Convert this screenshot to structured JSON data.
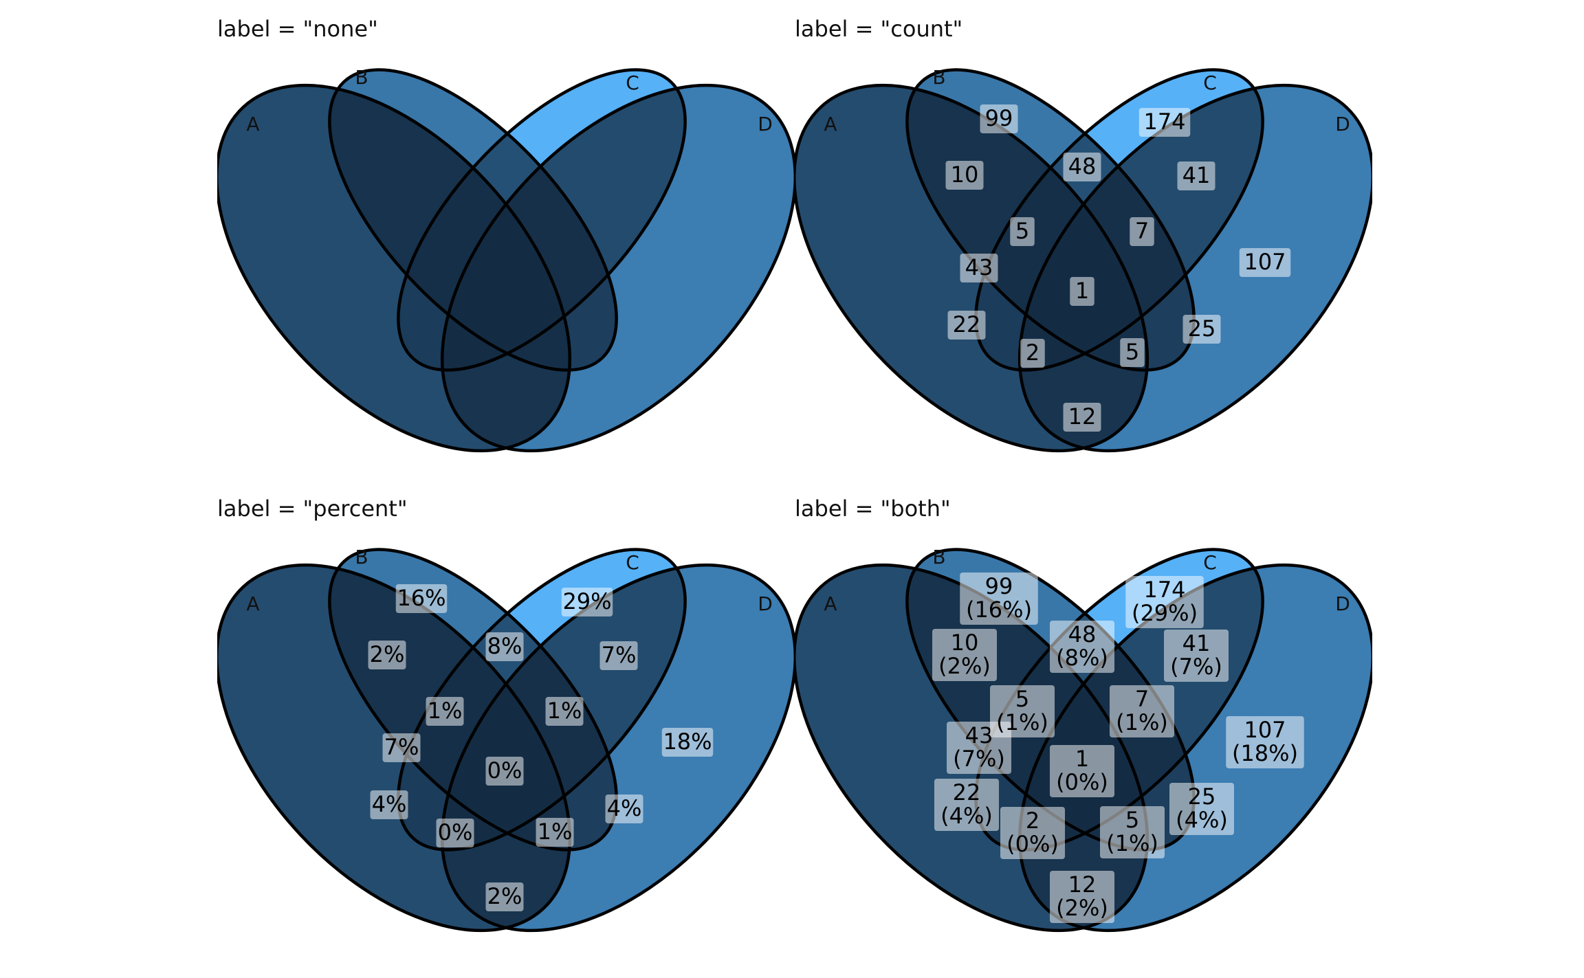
{
  "panels": [
    {
      "title": "label = \"none\"",
      "mode": "none"
    },
    {
      "title": "label = \"count\"",
      "mode": "count"
    },
    {
      "title": "label = \"percent\"",
      "mode": "percent"
    },
    {
      "title": "label = \"both\"",
      "mode": "both"
    }
  ],
  "sets": [
    "A",
    "B",
    "C",
    "D"
  ],
  "regions": [
    {
      "id": "A",
      "count": 43,
      "percent": "7%"
    },
    {
      "id": "B",
      "count": 99,
      "percent": "16%"
    },
    {
      "id": "C",
      "count": 174,
      "percent": "29%"
    },
    {
      "id": "D",
      "count": 107,
      "percent": "18%"
    },
    {
      "id": "AB",
      "count": 10,
      "percent": "2%"
    },
    {
      "id": "BC",
      "count": 48,
      "percent": "8%"
    },
    {
      "id": "CD",
      "count": 41,
      "percent": "7%"
    },
    {
      "id": "ABC",
      "count": 5,
      "percent": "1%"
    },
    {
      "id": "BCD",
      "count": 7,
      "percent": "1%"
    },
    {
      "id": "ABCD",
      "count": 1,
      "percent": "0%"
    },
    {
      "id": "AC",
      "count": 22,
      "percent": "4%"
    },
    {
      "id": "BD",
      "count": 25,
      "percent": "4%"
    },
    {
      "id": "ACD",
      "count": 2,
      "percent": "0%"
    },
    {
      "id": "ABD",
      "count": 5,
      "percent": "1%"
    },
    {
      "id": "AD",
      "count": 12,
      "percent": "2%"
    }
  ],
  "colors": {
    "fill_low": "#132B43",
    "fill_high": "#56B1F7",
    "stroke": "#000000"
  }
}
